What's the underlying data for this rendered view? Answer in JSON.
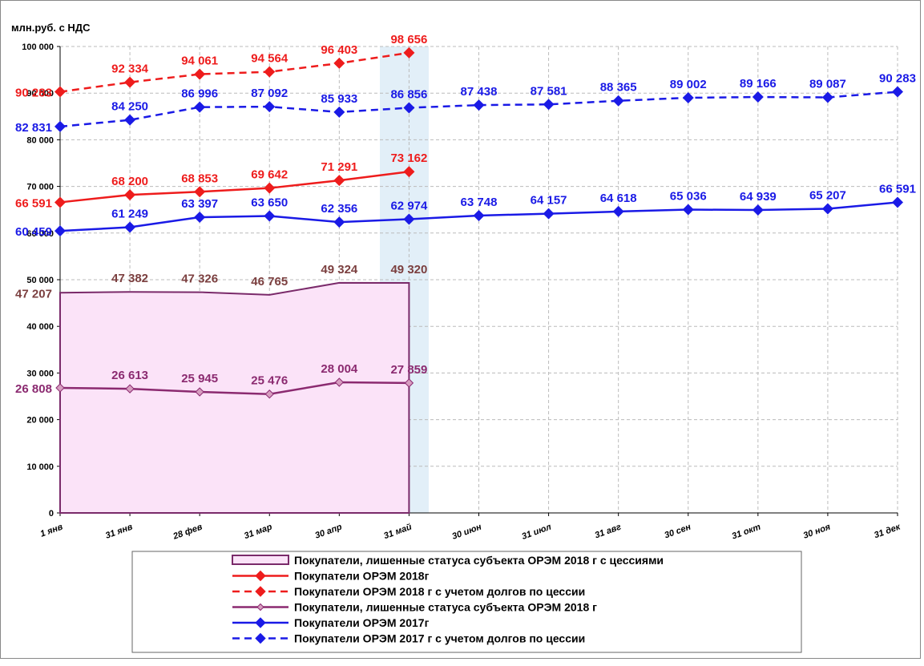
{
  "chart_data": {
    "type": "line",
    "y_axis_label": "млн.руб. с НДС",
    "categories": [
      "1 янв",
      "31 янв",
      "28 фев",
      "31 мар",
      "30 апр",
      "31 май",
      "30 июн",
      "31 июл",
      "31 авг",
      "30 сен",
      "31 окт",
      "30 ноя",
      "31 дек"
    ],
    "ylim": [
      0,
      100000
    ],
    "yticks": [
      0,
      {
        "value": 10000,
        "label": "10 000"
      },
      {
        "value": 20000,
        "label": "20 000"
      },
      {
        "value": 30000,
        "label": "30 000"
      },
      {
        "value": 40000,
        "label": "40 000"
      },
      {
        "value": 50000,
        "label": "50 000"
      },
      {
        "value": 60000,
        "label": "60 000"
      },
      {
        "value": 70000,
        "label": "70 000"
      },
      {
        "value": 80000,
        "label": "80 000"
      },
      {
        "value": 90000,
        "label": "90 000"
      },
      {
        "value": 100000,
        "label": "100 000"
      }
    ],
    "grid": true,
    "series": [
      {
        "name": "Покупатели, лишенные статуса субъекта ОРЭМ 2018 г с цессиями",
        "style": "area",
        "color": "#7b3f3f",
        "fill": "#fbe3f8",
        "values": [
          47207,
          47382,
          47326,
          46765,
          49324,
          49320,
          null,
          null,
          null,
          null,
          null,
          null,
          null
        ],
        "value_labels": [
          "47 207",
          "47 382",
          "47 326",
          "46 765",
          "49 324",
          "49 320",
          null,
          null,
          null,
          null,
          null,
          null,
          null
        ]
      },
      {
        "name": "Покупатели ОРЭМ 2018г",
        "style": "solid",
        "color": "#ee1c1c",
        "values": [
          66591,
          68200,
          68853,
          69642,
          71291,
          73162,
          null,
          null,
          null,
          null,
          null,
          null,
          null
        ],
        "value_labels": [
          "66 591",
          "68 200",
          "68 853",
          "69 642",
          "71 291",
          "73 162",
          null,
          null,
          null,
          null,
          null,
          null,
          null
        ]
      },
      {
        "name": "Покупатели ОРЭМ 2018 г с учетом долгов по цессии",
        "style": "dashed",
        "color": "#ee1c1c",
        "values": [
          90283,
          92334,
          94061,
          94564,
          96403,
          98656,
          null,
          null,
          null,
          null,
          null,
          null,
          null
        ],
        "value_labels": [
          "90 283",
          "92 334",
          "94 061",
          "94 564",
          "96 403",
          "98 656",
          null,
          null,
          null,
          null,
          null,
          null,
          null
        ]
      },
      {
        "name": "Покупатели, лишенные статуса субъекта ОРЭМ 2018 г",
        "style": "solid",
        "color": "#8b2a70",
        "values": [
          26808,
          26613,
          25945,
          25476,
          28004,
          27859,
          null,
          null,
          null,
          null,
          null,
          null,
          null
        ],
        "value_labels": [
          "26 808",
          "26 613",
          "25 945",
          "25 476",
          "28 004",
          "27 859",
          null,
          null,
          null,
          null,
          null,
          null,
          null
        ]
      },
      {
        "name": "Покупатели ОРЭМ 2017г",
        "style": "solid",
        "color": "#1a1ae6",
        "values": [
          60459,
          61249,
          63397,
          63650,
          62356,
          62974,
          63748,
          64157,
          64618,
          65036,
          64939,
          65207,
          66591
        ],
        "value_labels": [
          "60 459",
          "61 249",
          "63 397",
          "63 650",
          "62 356",
          "62 974",
          "63 748",
          "64 157",
          "64 618",
          "65 036",
          "64 939",
          "65 207",
          "66 591"
        ]
      },
      {
        "name": "Покупатели ОРЭМ 2017 г с учетом долгов по цессии",
        "style": "dashed",
        "color": "#1a1ae6",
        "values": [
          82831,
          84250,
          86996,
          87092,
          85933,
          86856,
          87438,
          87581,
          88365,
          89002,
          89166,
          89087,
          90283
        ],
        "value_labels": [
          "82 831",
          "84 250",
          "86 996",
          "87 092",
          "85 933",
          "86 856",
          "87 438",
          "87 581",
          "88 365",
          "89 002",
          "89 166",
          "89 087",
          "90 283"
        ]
      }
    ]
  }
}
